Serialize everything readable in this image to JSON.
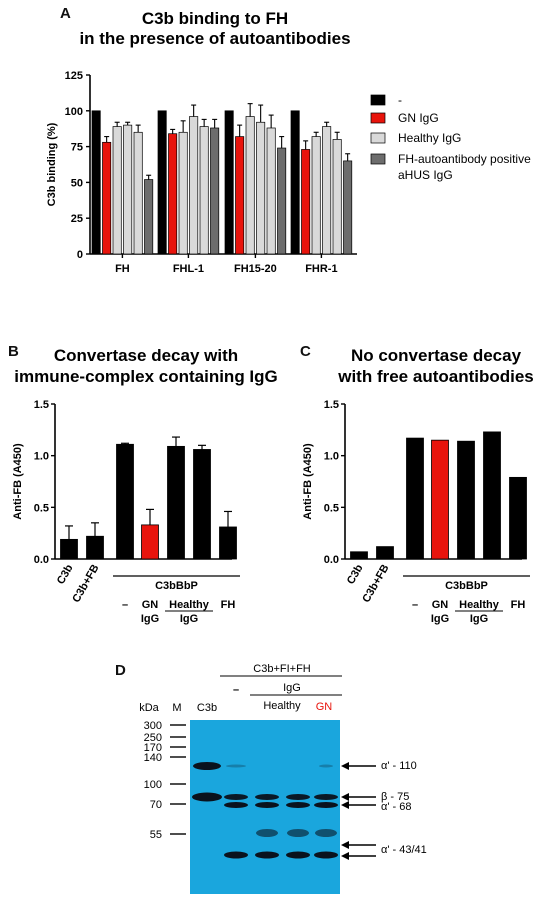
{
  "panels": {
    "A": {
      "letter": "A"
    },
    "B": {
      "letter": "B"
    },
    "C": {
      "letter": "C"
    },
    "D": {
      "letter": "D"
    }
  },
  "chart_data": [
    {
      "id": "A",
      "type": "bar",
      "title": [
        "C3b binding to FH",
        "in the presence of autoantibodies"
      ],
      "xlabel": "",
      "ylabel": "C3b binding (%)",
      "ylim": [
        0,
        125
      ],
      "yticks": [
        0,
        25,
        50,
        75,
        100,
        125
      ],
      "categories": [
        "FH",
        "FHL-1",
        "FH15-20",
        "FHR-1"
      ],
      "legend_position": "right",
      "grid": false,
      "series": [
        {
          "name": "-",
          "color": "#000000",
          "values": [
            100,
            100,
            100,
            100
          ],
          "errors": [
            0,
            0,
            0,
            0
          ]
        },
        {
          "name": "GN IgG",
          "color": "#e8140c",
          "values": [
            78,
            84,
            82,
            73
          ],
          "errors": [
            4,
            3,
            8,
            6
          ]
        },
        {
          "name": "Healthy IgG",
          "color": "#d9d9d9",
          "values": [
            89,
            85,
            96,
            82
          ],
          "errors": [
            3,
            8,
            9,
            3
          ]
        },
        {
          "name": "",
          "color": "#d9d9d9",
          "values": [
            90,
            96,
            92,
            89
          ],
          "errors": [
            2,
            8,
            12,
            3
          ]
        },
        {
          "name": "",
          "color": "#d9d9d9",
          "values": [
            85,
            89,
            88,
            80
          ],
          "errors": [
            5,
            5,
            9,
            5
          ]
        },
        {
          "name": "FH-autoantibody positive aHUS IgG",
          "color": "#6d6d6d",
          "values": [
            52,
            88,
            74,
            65
          ],
          "errors": [
            3,
            6,
            8,
            5
          ]
        }
      ]
    },
    {
      "id": "B",
      "type": "bar",
      "title": [
        "Convertase decay with",
        "immune-complex containing IgG"
      ],
      "xlabel": "",
      "ylabel": "Anti-FB (A450)",
      "ylim": [
        0,
        1.5
      ],
      "yticks": [
        "0.0",
        "0.5",
        "1.0",
        "1.5"
      ],
      "categories": [
        "C3b",
        "C3b+FB",
        "–",
        "GN IgG",
        "Healthy IgG",
        "Healthy IgG",
        "FH"
      ],
      "values": [
        0.19,
        0.22,
        1.11,
        0.33,
        1.09,
        1.06,
        0.31
      ],
      "errors": [
        0.13,
        0.13,
        0.01,
        0.15,
        0.09,
        0.04,
        0.15
      ],
      "colors": [
        "#000000",
        "#000000",
        "#000000",
        "#e8140c",
        "#000000",
        "#000000",
        "#000000"
      ],
      "group_label": "C3bBbP",
      "tick_labels": {
        "minus": "–",
        "gn_top": "GN",
        "gn_bottom": "IgG",
        "healthy_top": "Healthy",
        "healthy_bottom": "IgG",
        "fh": "FH",
        "c3b": "C3b",
        "c3bfb": "C3b+FB"
      }
    },
    {
      "id": "C",
      "type": "bar",
      "title": [
        "No convertase decay",
        "with free autoantibodies"
      ],
      "xlabel": "",
      "ylabel": "Anti-FB (A450)",
      "ylim": [
        0,
        1.5
      ],
      "yticks": [
        "0.0",
        "0.5",
        "1.0",
        "1.5"
      ],
      "categories": [
        "C3b",
        "C3b+FB",
        "–",
        "GN IgG",
        "Healthy IgG",
        "Healthy IgG",
        "FH"
      ],
      "values": [
        0.07,
        0.12,
        1.17,
        1.15,
        1.14,
        1.23,
        0.79
      ],
      "errors": [
        0,
        0,
        0,
        0,
        0,
        0,
        0
      ],
      "colors": [
        "#000000",
        "#000000",
        "#000000",
        "#e8140c",
        "#000000",
        "#000000",
        "#000000"
      ],
      "group_label": "C3bBbP",
      "tick_labels": {
        "minus": "–",
        "gn_top": "GN",
        "gn_bottom": "IgG",
        "healthy_top": "Healthy",
        "healthy_bottom": "IgG",
        "fh": "FH",
        "c3b": "C3b",
        "c3bfb": "C3b+FB"
      }
    }
  ],
  "blot": {
    "header": "C3b+FI+FH",
    "minus": "–",
    "igg": "IgG",
    "healthy": "Healthy",
    "gn": "GN",
    "kda": "kDa",
    "m": "M",
    "c3b": "C3b",
    "markers": [
      "300",
      "250",
      "170",
      "140",
      "100",
      "70",
      "55"
    ],
    "band_labels": [
      "α' - 110",
      "β - 75",
      "α' - 68",
      "α' - 43/41"
    ],
    "bg_color": "#1aa6dd",
    "gn_color": "#e8140c"
  }
}
